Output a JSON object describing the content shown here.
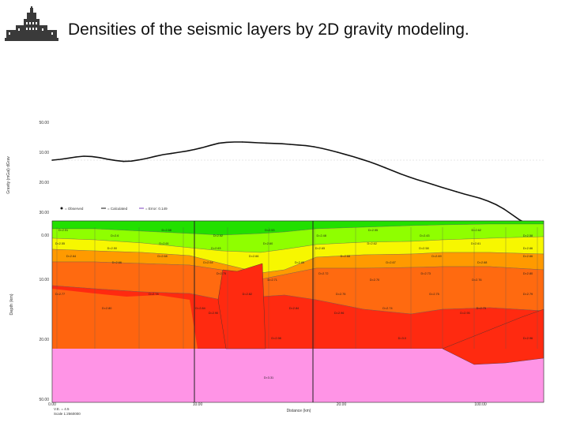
{
  "header": {
    "title": "Densities of the seismic layers by 2D gravity modeling."
  },
  "chart_data": [
    {
      "type": "line",
      "panel": "gravity",
      "ylabel": "Gravity (mGal) dGrav",
      "yticks": [
        "50.00",
        "10.00",
        "20.00",
        "30.00"
      ],
      "legend": [
        "= Observed",
        "= Calculated",
        "= Error: 0.149"
      ],
      "legend_colors": [
        "#111111",
        "#111111",
        "#7b3fbf"
      ],
      "x": [
        0,
        10,
        20,
        30,
        40,
        50,
        60,
        70,
        80,
        90,
        100,
        110,
        120,
        130,
        140,
        150,
        160,
        170,
        180,
        190,
        200,
        210,
        220,
        230,
        240,
        250,
        260,
        270,
        280,
        290,
        300,
        310,
        320,
        330,
        340,
        350,
        360,
        370,
        380,
        390,
        400,
        410,
        420,
        430,
        440,
        450,
        460,
        470,
        480,
        490,
        500,
        510,
        520,
        530,
        540,
        550,
        560,
        570,
        580,
        590,
        600,
        610,
        620
      ],
      "observed": [
        0.0,
        0.5,
        1.2,
        2.0,
        2.5,
        2.3,
        1.6,
        0.6,
        -0.2,
        -0.8,
        -0.6,
        0.2,
        1.2,
        2.4,
        3.5,
        4.2,
        5.0,
        5.8,
        6.8,
        8.0,
        9.4,
        10.7,
        11.3,
        11.5,
        11.5,
        11.3,
        11.0,
        10.8,
        10.6,
        10.4,
        10.0,
        9.6,
        9.2,
        8.5,
        7.5,
        6.3,
        5.0,
        3.6,
        2.2,
        0.6,
        -1.0,
        -2.8,
        -4.8,
        -6.8,
        -8.8,
        -10.6,
        -12.3,
        -13.8,
        -15.4,
        -17.0,
        -18.5,
        -20.0,
        -21.5,
        -22.8,
        -24.2,
        -26.0,
        -28.2,
        -31.0,
        -34.5,
        -38.0,
        -40.5,
        -42.2,
        -42.8
      ]
    },
    {
      "type": "heatmap",
      "panel": "density-model",
      "xlabel": "Distance (km)",
      "ylabel": "Depth (km)",
      "xticks": [
        "0.00",
        "10.00",
        "20.00",
        "100.00"
      ],
      "yticks": [
        "0.00",
        "10.00",
        "20.00",
        "30.00",
        "50.00"
      ],
      "footer": [
        "V.E. = 4.5",
        "Scale 1:2560000"
      ],
      "layers": [
        {
          "color": "#00c4ff",
          "labels": []
        },
        {
          "color": "#22e000",
          "labels": [
            "D=2.51",
            "D=2.6",
            "D=2.58",
            "D=2.52",
            "D=2.53",
            "D=2.48",
            "D=2.55",
            "D=2.43",
            "D=2.62",
            "D=2.58"
          ]
        },
        {
          "color": "#8fff00",
          "labels": [
            "D=2.55",
            "D=2.50",
            "D=2.61",
            "D=2.63",
            "D=2.60",
            "D=2.65",
            "D=2.62",
            "D=2.58",
            "D=2.61",
            "D=2.66"
          ]
        },
        {
          "color": "#f7f700",
          "labels": [
            "D=2.64",
            "D=2.66",
            "D=2.68",
            "D=2.64",
            "D=2.66",
            "D=2.65",
            "D=2.68",
            "D=2.67",
            "D=2.69",
            "D=2.68",
            "D=2.66"
          ]
        },
        {
          "color": "#ff9a00",
          "labels": [
            "D=2.75",
            "D=2.71",
            "D=2.72",
            "D=2.70",
            "D=2.73",
            "D=2.76",
            "D=2.80"
          ]
        },
        {
          "color": "#ff6a10",
          "labels": [
            "D=2.77",
            "D=2.80",
            "D=2.78",
            "D=2.84",
            "D=2.82",
            "D=2.84",
            "D=2.75",
            "D=2.74",
            "D=2.75",
            "D=2.75",
            "D=2.79"
          ]
        },
        {
          "color": "#ff2a10",
          "labels": [
            "D=2.90",
            "D=2.98",
            "D=2.96",
            "D=3.0",
            "D=2.95",
            "D=2.96"
          ]
        },
        {
          "color": "#ff94e6",
          "labels": [
            "D=3.31"
          ]
        }
      ]
    }
  ]
}
